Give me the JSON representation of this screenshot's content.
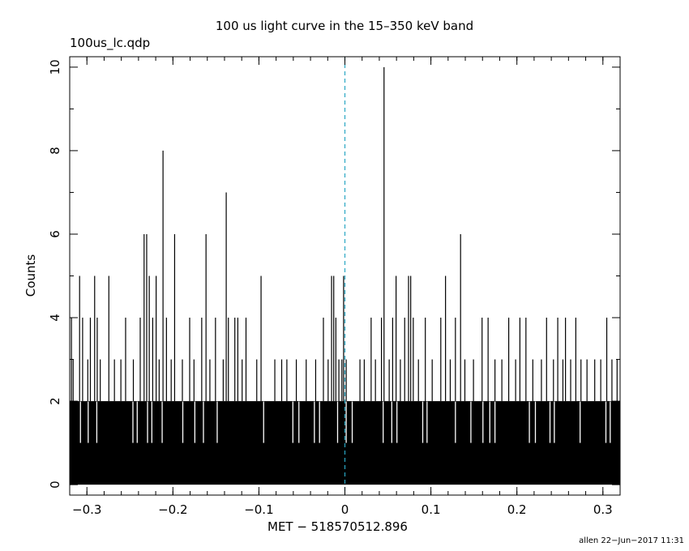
{
  "chart_data": {
    "type": "bar",
    "title": "100 us light curve in the 15–350 keV band",
    "file_label": "100us_lc.qdp",
    "xlabel": "MET − 518570512.896",
    "ylabel": "Counts",
    "footer": "allen 22−Jun−2017 11:31",
    "xlim": [
      -0.32,
      0.32
    ],
    "ylim": [
      -0.25,
      10.25
    ],
    "x_ticks": [
      {
        "value": -0.3,
        "label": "−0.3"
      },
      {
        "value": -0.2,
        "label": "−0.2"
      },
      {
        "value": -0.1,
        "label": "−0.1"
      },
      {
        "value": 0,
        "label": "0"
      },
      {
        "value": 0.1,
        "label": "0.1"
      },
      {
        "value": 0.2,
        "label": "0.2"
      },
      {
        "value": 0.3,
        "label": "0.3"
      }
    ],
    "y_ticks": [
      {
        "value": 0,
        "label": "0"
      },
      {
        "value": 2,
        "label": "2"
      },
      {
        "value": 4,
        "label": "4"
      },
      {
        "value": 6,
        "label": "6"
      },
      {
        "value": 8,
        "label": "8"
      },
      {
        "value": 10,
        "label": "10"
      }
    ],
    "trigger_line": {
      "x": 0,
      "color": "#2aa7c4"
    },
    "bin_width": 0.0001,
    "baseline_counts": 2,
    "peaks": [
      {
        "x": -0.318,
        "counts": 4
      },
      {
        "x": -0.316,
        "counts": 3
      },
      {
        "x": -0.3085,
        "counts": 5
      },
      {
        "x": -0.305,
        "counts": 4
      },
      {
        "x": -0.299,
        "counts": 3
      },
      {
        "x": -0.296,
        "counts": 4
      },
      {
        "x": -0.291,
        "counts": 5
      },
      {
        "x": -0.288,
        "counts": 4
      },
      {
        "x": -0.2845,
        "counts": 3
      },
      {
        "x": -0.2745,
        "counts": 5
      },
      {
        "x": -0.268,
        "counts": 3
      },
      {
        "x": -0.2605,
        "counts": 3
      },
      {
        "x": -0.255,
        "counts": 4
      },
      {
        "x": -0.246,
        "counts": 3
      },
      {
        "x": -0.238,
        "counts": 4
      },
      {
        "x": -0.2335,
        "counts": 6
      },
      {
        "x": -0.2305,
        "counts": 6
      },
      {
        "x": -0.2275,
        "counts": 5
      },
      {
        "x": -0.2235,
        "counts": 4
      },
      {
        "x": -0.2195,
        "counts": 5
      },
      {
        "x": -0.216,
        "counts": 3
      },
      {
        "x": -0.2115,
        "counts": 8
      },
      {
        "x": -0.2075,
        "counts": 4
      },
      {
        "x": -0.202,
        "counts": 3
      },
      {
        "x": -0.198,
        "counts": 6
      },
      {
        "x": -0.189,
        "counts": 3
      },
      {
        "x": -0.1805,
        "counts": 4
      },
      {
        "x": -0.1755,
        "counts": 3
      },
      {
        "x": -0.1665,
        "counts": 4
      },
      {
        "x": -0.1615,
        "counts": 6
      },
      {
        "x": -0.157,
        "counts": 3
      },
      {
        "x": -0.1505,
        "counts": 4
      },
      {
        "x": -0.1415,
        "counts": 3
      },
      {
        "x": -0.138,
        "counts": 7
      },
      {
        "x": -0.1355,
        "counts": 4
      },
      {
        "x": -0.128,
        "counts": 4
      },
      {
        "x": -0.1245,
        "counts": 4
      },
      {
        "x": -0.1195,
        "counts": 3
      },
      {
        "x": -0.115,
        "counts": 4
      },
      {
        "x": -0.1025,
        "counts": 3
      },
      {
        "x": -0.0975,
        "counts": 5
      },
      {
        "x": -0.0815,
        "counts": 3
      },
      {
        "x": -0.0735,
        "counts": 3
      },
      {
        "x": -0.0675,
        "counts": 3
      },
      {
        "x": -0.0565,
        "counts": 3
      },
      {
        "x": -0.045,
        "counts": 3
      },
      {
        "x": -0.034,
        "counts": 3
      },
      {
        "x": -0.025,
        "counts": 4
      },
      {
        "x": -0.0195,
        "counts": 3
      },
      {
        "x": -0.0155,
        "counts": 5
      },
      {
        "x": -0.013,
        "counts": 5
      },
      {
        "x": -0.0105,
        "counts": 4
      },
      {
        "x": -0.007,
        "counts": 3
      },
      {
        "x": -0.0035,
        "counts": 3
      },
      {
        "x": -0.0015,
        "counts": 5
      },
      {
        "x": 0.0015,
        "counts": 3
      },
      {
        "x": 0.0175,
        "counts": 3
      },
      {
        "x": 0.0225,
        "counts": 3
      },
      {
        "x": 0.0305,
        "counts": 4
      },
      {
        "x": 0.0355,
        "counts": 3
      },
      {
        "x": 0.0425,
        "counts": 4
      },
      {
        "x": 0.0455,
        "counts": 10
      },
      {
        "x": 0.0515,
        "counts": 3
      },
      {
        "x": 0.0555,
        "counts": 4
      },
      {
        "x": 0.0595,
        "counts": 5
      },
      {
        "x": 0.0645,
        "counts": 3
      },
      {
        "x": 0.0695,
        "counts": 4
      },
      {
        "x": 0.074,
        "counts": 5
      },
      {
        "x": 0.0765,
        "counts": 5
      },
      {
        "x": 0.0795,
        "counts": 4
      },
      {
        "x": 0.0855,
        "counts": 3
      },
      {
        "x": 0.0935,
        "counts": 4
      },
      {
        "x": 0.1015,
        "counts": 3
      },
      {
        "x": 0.1115,
        "counts": 4
      },
      {
        "x": 0.117,
        "counts": 5
      },
      {
        "x": 0.1225,
        "counts": 3
      },
      {
        "x": 0.1285,
        "counts": 4
      },
      {
        "x": 0.1345,
        "counts": 6
      },
      {
        "x": 0.1395,
        "counts": 3
      },
      {
        "x": 0.1495,
        "counts": 3
      },
      {
        "x": 0.1595,
        "counts": 4
      },
      {
        "x": 0.1665,
        "counts": 4
      },
      {
        "x": 0.1745,
        "counts": 3
      },
      {
        "x": 0.1825,
        "counts": 3
      },
      {
        "x": 0.1905,
        "counts": 4
      },
      {
        "x": 0.1985,
        "counts": 3
      },
      {
        "x": 0.2035,
        "counts": 4
      },
      {
        "x": 0.2105,
        "counts": 4
      },
      {
        "x": 0.2185,
        "counts": 3
      },
      {
        "x": 0.2285,
        "counts": 3
      },
      {
        "x": 0.2345,
        "counts": 4
      },
      {
        "x": 0.2425,
        "counts": 3
      },
      {
        "x": 0.2475,
        "counts": 4
      },
      {
        "x": 0.2535,
        "counts": 3
      },
      {
        "x": 0.2565,
        "counts": 4
      },
      {
        "x": 0.2625,
        "counts": 3
      },
      {
        "x": 0.2685,
        "counts": 4
      },
      {
        "x": 0.2745,
        "counts": 3
      },
      {
        "x": 0.2815,
        "counts": 3
      },
      {
        "x": 0.2905,
        "counts": 3
      },
      {
        "x": 0.2975,
        "counts": 3
      },
      {
        "x": 0.3045,
        "counts": 4
      },
      {
        "x": 0.3105,
        "counts": 3
      },
      {
        "x": 0.3165,
        "counts": 3
      }
    ],
    "dropouts": [
      {
        "x": -0.3075,
        "counts": 1
      },
      {
        "x": -0.2985,
        "counts": 1
      },
      {
        "x": -0.2885,
        "counts": 1
      },
      {
        "x": -0.2465,
        "counts": 1
      },
      {
        "x": -0.2415,
        "counts": 1
      },
      {
        "x": -0.2295,
        "counts": 1
      },
      {
        "x": -0.2245,
        "counts": 1
      },
      {
        "x": -0.2125,
        "counts": 1
      },
      {
        "x": -0.1885,
        "counts": 1
      },
      {
        "x": -0.1745,
        "counts": 1
      },
      {
        "x": -0.1645,
        "counts": 1
      },
      {
        "x": -0.1485,
        "counts": 1
      },
      {
        "x": -0.0945,
        "counts": 1
      },
      {
        "x": -0.0605,
        "counts": 1
      },
      {
        "x": -0.0535,
        "counts": 1
      },
      {
        "x": -0.0355,
        "counts": 1
      },
      {
        "x": -0.0295,
        "counts": 1
      },
      {
        "x": -0.0085,
        "counts": 1
      },
      {
        "x": 0.0015,
        "counts": 1
      },
      {
        "x": 0.0085,
        "counts": 1
      },
      {
        "x": 0.0445,
        "counts": 1
      },
      {
        "x": 0.0545,
        "counts": 1
      },
      {
        "x": 0.0605,
        "counts": 1
      },
      {
        "x": 0.0905,
        "counts": 1
      },
      {
        "x": 0.0955,
        "counts": 1
      },
      {
        "x": 0.1285,
        "counts": 1
      },
      {
        "x": 0.1465,
        "counts": 1
      },
      {
        "x": 0.1605,
        "counts": 1
      },
      {
        "x": 0.1685,
        "counts": 1
      },
      {
        "x": 0.1745,
        "counts": 1
      },
      {
        "x": 0.2145,
        "counts": 1
      },
      {
        "x": 0.2215,
        "counts": 1
      },
      {
        "x": 0.2385,
        "counts": 1
      },
      {
        "x": 0.2435,
        "counts": 1
      },
      {
        "x": 0.2735,
        "counts": 1
      },
      {
        "x": 0.3035,
        "counts": 1
      },
      {
        "x": 0.3085,
        "counts": 1
      }
    ]
  }
}
